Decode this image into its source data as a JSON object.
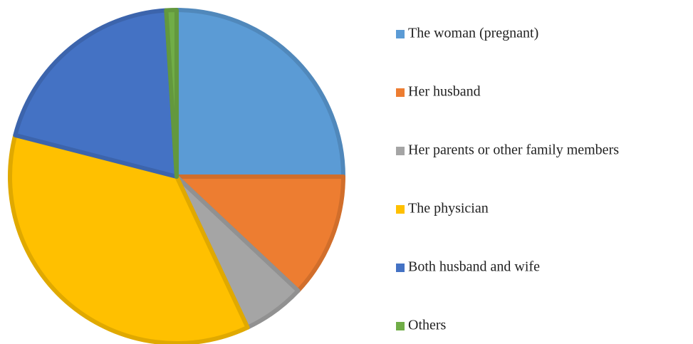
{
  "chart_data": {
    "type": "pie",
    "categories": [
      "The woman (pregnant)",
      "Her husband",
      "Her parents or other family members",
      "The physician",
      "Both husband and wife",
      "Others"
    ],
    "values": [
      25,
      12,
      6,
      36,
      20,
      1
    ],
    "colors": [
      "#5b9bd5",
      "#ed7d31",
      "#a5a5a5",
      "#ffc000",
      "#4472c4",
      "#70ad47"
    ],
    "legend": "right"
  }
}
